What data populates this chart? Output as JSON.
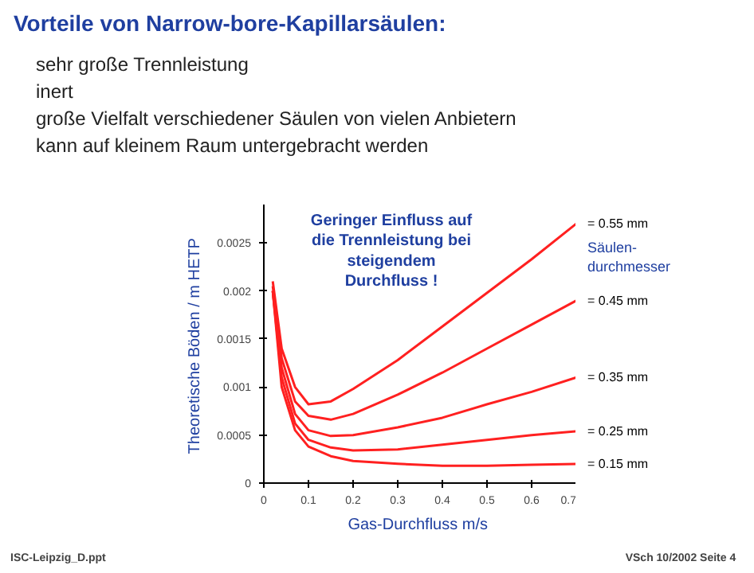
{
  "chart_data": {
    "type": "line",
    "title": "Vorteile von Narrow-bore-Kapillarsäulen:",
    "annotations": [
      "sehr große Trennleistung",
      "inert",
      "große Vielfalt verschiedener Säulen von vielen Anbietern",
      "kann auf kleinem Raum untergebracht werden",
      "Geringer Einfluss auf die Trennleistung bei steigendem Durchfluss !",
      "ISC-Leipzig_D.ppt",
      "VSch 10/2002   Seite 4"
    ],
    "xlabel": "Gas-Durchfluss  m/s",
    "ylabel": "Theoretische Böden / m  HETP",
    "legend_title": "Säulen-durchmesser",
    "x": [
      0.02,
      0.04,
      0.07,
      0.1,
      0.15,
      0.2,
      0.3,
      0.4,
      0.5,
      0.6,
      0.7
    ],
    "series": [
      {
        "name": "= 0.55 mm",
        "color": "#ff2020",
        "values": [
          0.0021,
          0.0014,
          0.001,
          0.00082,
          0.00085,
          0.00098,
          0.00128,
          0.00163,
          0.00198,
          0.00233,
          0.0027
        ]
      },
      {
        "name": "= 0.45 mm",
        "color": "#ff2020",
        "values": [
          0.00205,
          0.0013,
          0.00085,
          0.0007,
          0.00066,
          0.00072,
          0.00092,
          0.00115,
          0.0014,
          0.00165,
          0.0019
        ]
      },
      {
        "name": "= 0.35 mm",
        "color": "#ff2020",
        "values": [
          0.002,
          0.0012,
          0.00072,
          0.00055,
          0.00049,
          0.0005,
          0.00058,
          0.00068,
          0.00082,
          0.00095,
          0.0011
        ]
      },
      {
        "name": "= 0.25 mm",
        "color": "#ff2020",
        "values": [
          0.002,
          0.0011,
          0.00062,
          0.00045,
          0.00037,
          0.00034,
          0.00035,
          0.0004,
          0.00045,
          0.0005,
          0.00054
        ]
      },
      {
        "name": "= 0.15 mm",
        "color": "#ff2020",
        "values": [
          0.002,
          0.001,
          0.00055,
          0.00038,
          0.00028,
          0.00023,
          0.0002,
          0.00018,
          0.00018,
          0.00019,
          0.0002
        ]
      }
    ],
    "xlim": [
      0,
      0.7
    ],
    "ylim": [
      0,
      0.0029
    ],
    "xticks": [
      0,
      0.1,
      0.2,
      0.3,
      0.4,
      0.5,
      0.6,
      0.7
    ],
    "yticks": [
      0,
      0.0005,
      0.001,
      0.0015,
      0.002,
      0.0025
    ],
    "grid": false,
    "marker": "none",
    "line_style": "solid"
  }
}
